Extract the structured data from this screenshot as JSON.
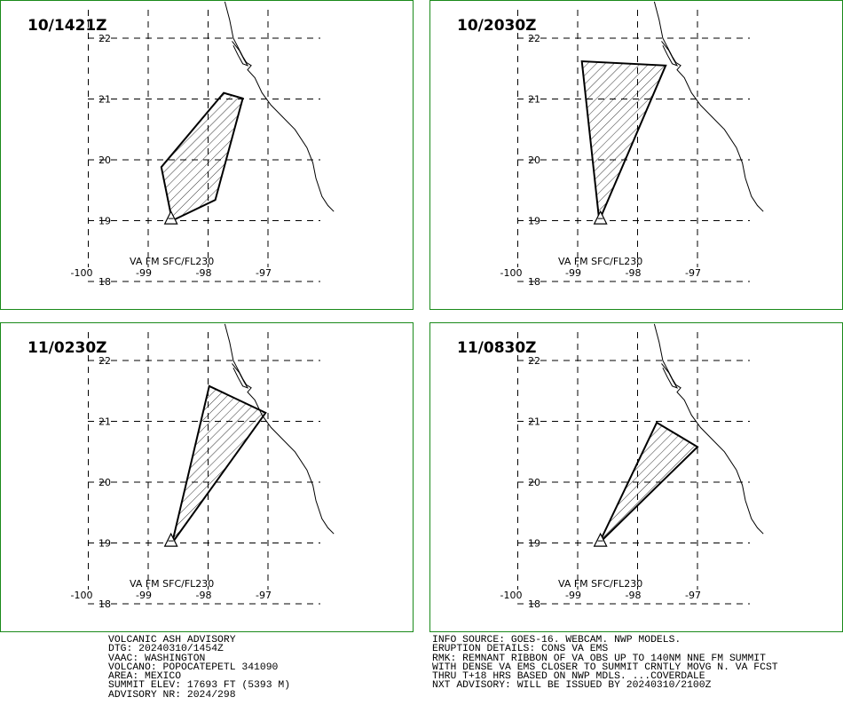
{
  "panels": [
    {
      "time": "10/1421Z",
      "ash_label": "VA FM SFC/FL230",
      "polygon": [
        [
          -98.6,
          19.0
        ],
        [
          -97.88,
          19.34
        ],
        [
          -97.42,
          21.01
        ],
        [
          -97.74,
          21.1
        ],
        [
          -98.78,
          19.88
        ]
      ]
    },
    {
      "time": "10/2030Z",
      "ash_label": "VA FM SFC/FL230",
      "polygon": [
        [
          -98.64,
          19.0
        ],
        [
          -97.53,
          21.55
        ],
        [
          -98.93,
          21.62
        ]
      ]
    },
    {
      "time": "11/0230Z",
      "ash_label": "VA FM SFC/FL230",
      "polygon": [
        [
          -98.6,
          19.0
        ],
        [
          -97.04,
          21.14
        ],
        [
          -97.98,
          21.58
        ]
      ]
    },
    {
      "time": "11/0830Z",
      "ash_label": "VA FM SFC/FL230",
      "polygon": [
        [
          -98.64,
          19.0
        ],
        [
          -97.0,
          20.58
        ],
        [
          -97.68,
          20.98
        ]
      ]
    }
  ],
  "map": {
    "lat_ticks": [
      "22",
      "21",
      "20",
      "19",
      "18"
    ],
    "lon_ticks": [
      "-100",
      "-99",
      "-98",
      "-97"
    ],
    "volcano_symbol": "triangle-volcano-icon",
    "volcano_lat": 19.02,
    "volcano_lon": -98.62,
    "coastline": [
      [
        -97.72,
        22.6
      ],
      [
        -97.64,
        22.3
      ],
      [
        -97.58,
        22.0
      ],
      [
        -97.5,
        21.85
      ],
      [
        -97.42,
        21.7
      ],
      [
        -97.36,
        21.6
      ],
      [
        -97.28,
        21.55
      ],
      [
        -97.34,
        21.48
      ],
      [
        -97.22,
        21.35
      ],
      [
        -97.1,
        21.1
      ],
      [
        -96.95,
        20.9
      ],
      [
        -96.75,
        20.7
      ],
      [
        -96.55,
        20.5
      ],
      [
        -96.35,
        20.2
      ],
      [
        -96.25,
        19.95
      ],
      [
        -96.2,
        19.7
      ],
      [
        -96.1,
        19.4
      ],
      [
        -96.0,
        19.25
      ],
      [
        -95.9,
        19.15
      ]
    ],
    "lagoon": [
      [
        -97.6,
        21.95
      ],
      [
        -97.48,
        21.8
      ],
      [
        -97.4,
        21.65
      ],
      [
        -97.34,
        21.55
      ],
      [
        -97.42,
        21.58
      ],
      [
        -97.5,
        21.72
      ],
      [
        -97.58,
        21.88
      ]
    ],
    "colors": {
      "border": "#1a8a1a",
      "lines": "#000000"
    }
  },
  "advisory_left": [
    "VOLCANIC ASH ADVISORY",
    "DTG: 20240310/1454Z",
    "VAAC: WASHINGTON",
    "VOLCANO: POPOCATEPETL 341090",
    "AREA: MEXICO",
    "SUMMIT ELEV: 17693 FT (5393 M)",
    "ADVISORY NR: 2024/298"
  ],
  "advisory_right": [
    "INFO SOURCE: GOES-16. WEBCAM. NWP MODELS.",
    "ERUPTION DETAILS: CONS VA EMS",
    "RMK: REMNANT RIBBON OF VA OBS UP TO 140NM NNE FM SUMMIT",
    "WITH DENSE VA EMS CLOSER TO SUMMIT CRNTLY MOVG N. VA FCST",
    "THRU T+18 HRS BASED ON NWP MDLS. ...COVERDALE",
    "NXT ADVISORY: WILL BE ISSUED BY 20240310/2100Z"
  ]
}
